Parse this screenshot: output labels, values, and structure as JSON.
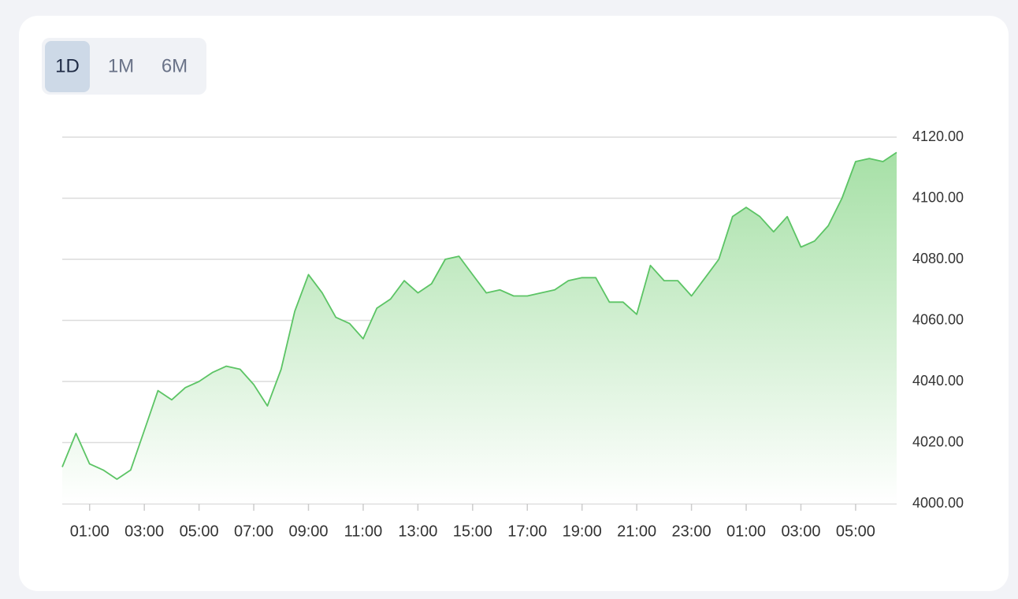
{
  "range_selector": {
    "options": [
      "1D",
      "1M",
      "6M"
    ],
    "selected": "1D"
  },
  "chart_data": {
    "type": "area",
    "color": "#5cc465",
    "x": [
      0,
      0.5,
      1,
      1.5,
      2,
      2.5,
      3,
      3.5,
      4,
      4.5,
      5,
      5.5,
      6,
      6.5,
      7,
      7.5,
      8,
      8.5,
      9,
      9.5,
      10,
      10.5,
      11,
      11.5,
      12,
      12.5,
      13,
      13.5,
      14,
      14.5,
      15,
      15.5,
      16,
      16.5,
      17,
      17.5,
      18,
      18.5,
      19,
      19.5,
      20,
      20.5,
      21,
      21.5,
      22,
      22.5,
      23,
      23.5,
      24,
      24.5,
      25,
      25.5,
      26,
      26.5,
      27,
      27.5,
      28,
      28.5,
      29,
      29.5,
      30,
      30.5
    ],
    "values": [
      4012,
      4023,
      4013,
      4011,
      4008,
      4011,
      4024,
      4037,
      4034,
      4038,
      4040,
      4043,
      4045,
      4044,
      4039,
      4032,
      4044,
      4063,
      4075,
      4069,
      4061,
      4059,
      4054,
      4064,
      4067,
      4073,
      4069,
      4072,
      4080,
      4081,
      4075,
      4069,
      4070,
      4068,
      4068,
      4069,
      4070,
      4073,
      4074,
      4074,
      4066,
      4066,
      4062,
      4078,
      4073,
      4073,
      4068,
      4074,
      4080,
      4094,
      4097,
      4094,
      4089,
      4094,
      4084,
      4086,
      4091,
      4100,
      4112,
      4113,
      4112,
      4115
    ],
    "xlim": [
      0,
      30.5
    ],
    "xticks": [
      {
        "value": 1,
        "label": "01:00"
      },
      {
        "value": 3,
        "label": "03:00"
      },
      {
        "value": 5,
        "label": "05:00"
      },
      {
        "value": 7,
        "label": "07:00"
      },
      {
        "value": 9,
        "label": "09:00"
      },
      {
        "value": 11,
        "label": "11:00"
      },
      {
        "value": 13,
        "label": "13:00"
      },
      {
        "value": 15,
        "label": "15:00"
      },
      {
        "value": 17,
        "label": "17:00"
      },
      {
        "value": 19,
        "label": "19:00"
      },
      {
        "value": 21,
        "label": "21:00"
      },
      {
        "value": 23,
        "label": "23:00"
      },
      {
        "value": 25,
        "label": "01:00"
      },
      {
        "value": 27,
        "label": "03:00"
      },
      {
        "value": 29,
        "label": "05:00"
      }
    ],
    "ylim": [
      4000,
      4120
    ],
    "yticks": [
      {
        "value": 4000,
        "label": "4000.00"
      },
      {
        "value": 4020,
        "label": "4020.00"
      },
      {
        "value": 4040,
        "label": "4040.00"
      },
      {
        "value": 4060,
        "label": "4060.00"
      },
      {
        "value": 4080,
        "label": "4080.00"
      },
      {
        "value": 4100,
        "label": "4100.00"
      },
      {
        "value": 4120,
        "label": "4120.00"
      }
    ],
    "grid": true
  }
}
